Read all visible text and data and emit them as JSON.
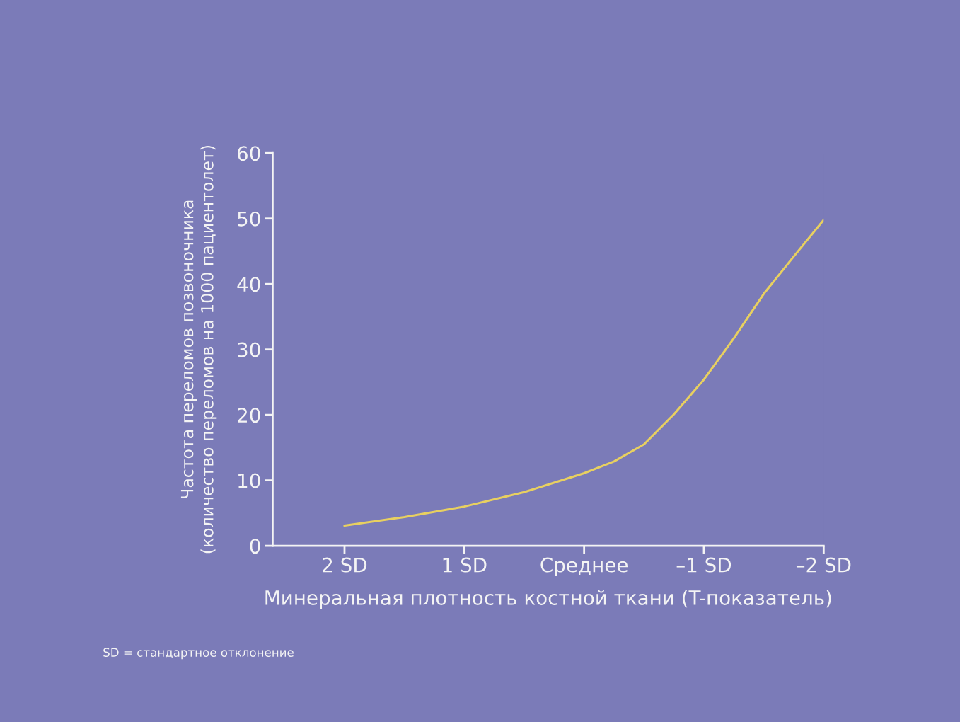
{
  "chart_data": {
    "type": "line",
    "xlabel": "Минеральная плотность костной ткани (T-показатель)",
    "ylabel": "Частота переломов позвоночника\n(количество переломов на 1000 пациентолет)",
    "x": [
      2,
      1.5,
      1,
      0.5,
      0,
      -0.25,
      -0.5,
      -0.75,
      -1,
      -1.25,
      -1.5,
      -1.75,
      -2
    ],
    "series": [
      {
        "color": "#e8d060",
        "values": [
          3.1,
          4.4,
          6,
          8.2,
          11.1,
          12.9,
          15.5,
          20.1,
          25.4,
          31.7,
          38.5,
          44.2,
          49.8
        ]
      }
    ],
    "xlim": [
      2.6,
      -2
    ],
    "xticks": [
      {
        "value": 2,
        "label": "2 SD"
      },
      {
        "value": 1,
        "label": "1 SD"
      },
      {
        "value": 0,
        "label": "Среднее"
      },
      {
        "value": -1,
        "label": "–1 SD"
      },
      {
        "value": -2,
        "label": "–2 SD"
      }
    ],
    "ylim": [
      0,
      60
    ],
    "yticks": [
      0,
      10,
      20,
      30,
      40,
      50,
      60
    ],
    "grid": false,
    "legend": false,
    "marker": "none",
    "line_style": "solid",
    "annotations": [
      "SD = стандартное отклонение"
    ]
  }
}
